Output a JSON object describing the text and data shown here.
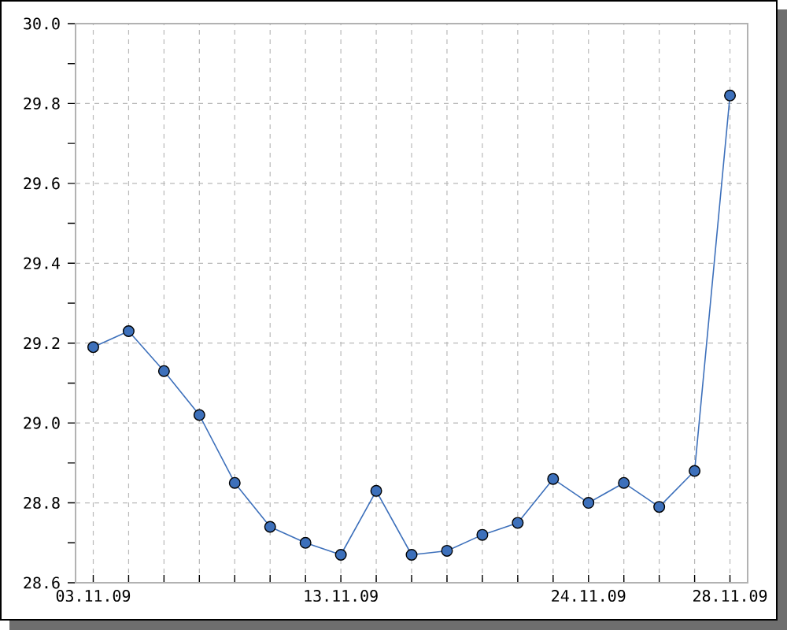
{
  "chart_data": {
    "type": "line",
    "categories": [
      "03.11.09",
      null,
      null,
      null,
      null,
      null,
      null,
      "13.11.09",
      null,
      null,
      null,
      null,
      null,
      null,
      "24.11.09",
      null,
      null,
      null,
      "28.11.09"
    ],
    "values": [
      29.19,
      29.23,
      29.13,
      29.02,
      28.85,
      28.74,
      28.7,
      28.67,
      28.83,
      28.67,
      28.68,
      28.72,
      28.75,
      28.86,
      28.8,
      28.85,
      28.79,
      28.88,
      29.82
    ],
    "color": "#3d70bb",
    "ylim": [
      28.6,
      30.0
    ],
    "yticks": [
      28.6,
      {
        "value": 28.7,
        "label": null
      },
      28.8,
      {
        "value": 28.9,
        "label": null
      },
      {
        "value": 29.0,
        "label": "29.0"
      },
      {
        "value": 29.1,
        "label": null
      },
      29.2,
      {
        "value": 29.3,
        "label": null
      },
      29.4,
      {
        "value": 29.5,
        "label": null
      },
      29.6,
      {
        "value": 29.7,
        "label": null
      },
      29.8,
      {
        "value": 29.9,
        "label": null
      },
      {
        "value": 30.0,
        "label": "30.0"
      }
    ],
    "grid": true,
    "marker": "circle",
    "line_style": "solid"
  }
}
